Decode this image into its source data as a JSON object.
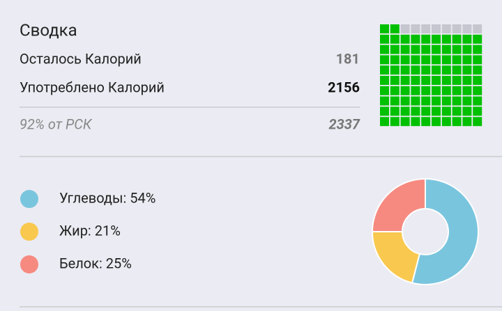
{
  "summary": {
    "title": "Сводка",
    "rows": [
      {
        "label": "Осталось Калорий",
        "value": "181"
      },
      {
        "label": "Употреблено Калорий",
        "value": "2156"
      }
    ],
    "footer": {
      "label": "92% от РСК",
      "value": "2337"
    }
  },
  "waffle": {
    "filled": 92,
    "total": 100,
    "filled_color": "#00c000",
    "empty_color": "#c6c6d0"
  },
  "macros": [
    {
      "label": "Углеводы: 54%",
      "value": 54,
      "color": "#7ac5de"
    },
    {
      "label": "Жир: 21%",
      "value": 21,
      "color": "#f9c84f"
    },
    {
      "label": "Белок: 25%",
      "value": 25,
      "color": "#f68a80"
    }
  ]
}
